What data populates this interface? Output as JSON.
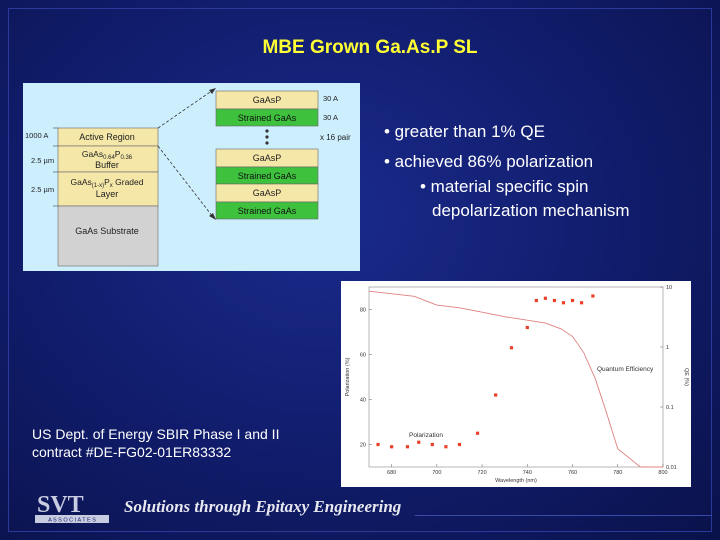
{
  "slide": {
    "title": "MBE Grown Ga.As.P SL",
    "bullets": [
      "• greater than 1% QE",
      "• achieved 86% polarization",
      "• material specific spin",
      "depolarization mechanism"
    ],
    "contract_line1": "US Dept. of Energy SBIR Phase I and II",
    "contract_line2": "contract #DE-FG02-01ER83332",
    "tagline": "Solutions through Epitaxy Engineering",
    "logo_letters": "SVT",
    "logo_sub": "A S S O C I A T E S"
  },
  "diagram": {
    "layers_left": [
      {
        "label": "Active Region",
        "thickness": "1000 A"
      },
      {
        "label": "GaAs0.64P0.36 Buffer",
        "thickness": "2.5 µm"
      },
      {
        "label": "GaAs(1-x)Px Graded Layer",
        "thickness": "2.5 µm"
      },
      {
        "label": "GaAs Substrate",
        "thickness": ""
      }
    ],
    "layers_right": [
      {
        "label": "GaAsP",
        "thickness": "30 A"
      },
      {
        "label": "Strained GaAs",
        "thickness": "30 A"
      },
      {
        "label": "GaAsP",
        "thickness": ""
      },
      {
        "label": "Strained GaAs",
        "thickness": ""
      },
      {
        "label": "GaAsP",
        "thickness": ""
      },
      {
        "label": "Strained GaAs",
        "thickness": ""
      }
    ],
    "repeat_label": "x 16 pair",
    "colors": {
      "tan": "#f5e7a8",
      "green": "#3ec23e",
      "gray": "#cfcfcf",
      "bg": "#cdeffd"
    }
  },
  "chart_data": {
    "type": "scatter",
    "title": "",
    "xlabel": "Wavelength (nm)",
    "ylabel": "Polarization (%)",
    "y2label": "QE (%)",
    "xlim": [
      670,
      800
    ],
    "ylim": [
      10,
      90
    ],
    "y2lim": [
      0.01,
      10
    ],
    "y2scale": "log",
    "x_ticks": [
      680,
      690,
      700,
      710,
      720,
      730,
      740,
      750,
      760,
      770,
      780,
      790,
      800
    ],
    "y_ticks": [
      20,
      40,
      60,
      80
    ],
    "y2_ticks": [
      0.01,
      0.1,
      1,
      10
    ],
    "annotations": [
      "Quantum Efficiency",
      "Polarization"
    ],
    "series": [
      {
        "name": "Polarization",
        "marker": "square",
        "x": [
          674,
          680,
          687,
          692,
          698,
          704,
          710,
          718,
          726,
          733,
          740,
          744,
          748,
          752,
          756,
          760,
          764,
          769
        ],
        "values": [
          20,
          19,
          19,
          21,
          20,
          19,
          20,
          25,
          42,
          63,
          72,
          84,
          85,
          84,
          83,
          84,
          83,
          86
        ]
      },
      {
        "name": "Quantum Efficiency",
        "marker": "line",
        "x": [
          670,
          690,
          700,
          710,
          720,
          730,
          740,
          748,
          755,
          760,
          765,
          770,
          775,
          780,
          790,
          800
        ],
        "values": [
          8.5,
          7,
          5,
          4.5,
          3.8,
          3.2,
          2.8,
          2.5,
          2.0,
          1.5,
          0.8,
          0.3,
          0.08,
          0.02,
          0.01,
          0.01
        ]
      }
    ]
  }
}
